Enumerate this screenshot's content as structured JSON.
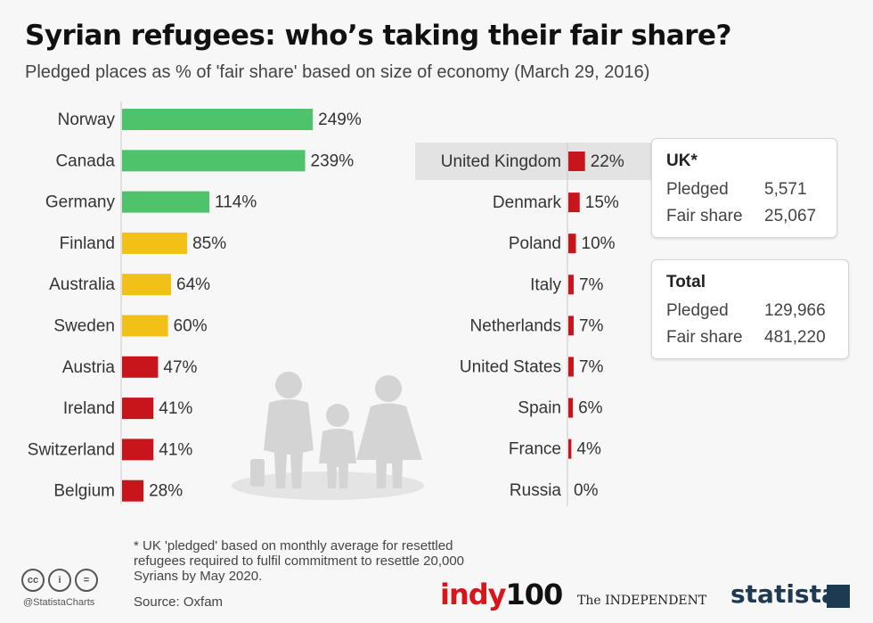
{
  "title": "Syrian refugees: who’s taking their fair share?",
  "subtitle": "Pledged places as % of 'fair share' based on size of economy (March 29, 2016)",
  "colors": {
    "green": "#4fc26c",
    "yellow": "#f2c118",
    "red": "#c8151b",
    "highlight": "#e3e3e3",
    "silhouette": "#d3d3d3"
  },
  "chart_data": {
    "type": "bar",
    "orientation": "horizontal",
    "unit": "%",
    "panels": [
      {
        "categories": [
          "Norway",
          "Canada",
          "Germany",
          "Finland",
          "Australia",
          "Sweden",
          "Austria",
          "Ireland",
          "Switzerland",
          "Belgium"
        ],
        "values": [
          249,
          239,
          114,
          85,
          64,
          60,
          47,
          41,
          41,
          28
        ],
        "labels": [
          "249%",
          "239%",
          "114%",
          "85%",
          "64%",
          "60%",
          "47%",
          "41%",
          "41%",
          "28%"
        ],
        "colors": [
          "green",
          "green",
          "green",
          "yellow",
          "yellow",
          "yellow",
          "red",
          "red",
          "red",
          "red"
        ]
      },
      {
        "categories": [
          "United Kingdom",
          "Denmark",
          "Poland",
          "Italy",
          "Netherlands",
          "United States",
          "Spain",
          "France",
          "Russia"
        ],
        "values": [
          22,
          15,
          10,
          7,
          7,
          7,
          6,
          4,
          0
        ],
        "labels": [
          "22%",
          "15%",
          "10%",
          "7%",
          "7%",
          "7%",
          "6%",
          "4%",
          "0%"
        ],
        "colors": [
          "red",
          "red",
          "red",
          "red",
          "red",
          "red",
          "red",
          "red",
          "red"
        ],
        "highlighted": "United Kingdom"
      }
    ]
  },
  "uk_box": {
    "title": "UK*",
    "pledged_label": "Pledged",
    "pledged_value": "5,571",
    "fair_label": "Fair share",
    "fair_value": "25,067"
  },
  "total_box": {
    "title": "Total",
    "pledged_label": "Pledged",
    "pledged_value": "129,966",
    "fair_label": "Fair share",
    "fair_value": "481,220"
  },
  "footnote": "* UK 'pledged' based on monthly average for resettled refugees required to fulfil commitment to resettle 20,000 Syrians by May 2020.",
  "source": "Source: Oxfam",
  "handle": "@StatistaCharts",
  "cc_icons": [
    "cc",
    "i",
    "="
  ],
  "logos": {
    "indy_a": "indy",
    "indy_b": "100",
    "independent": "The INDEPENDENT",
    "statista": "statista"
  }
}
